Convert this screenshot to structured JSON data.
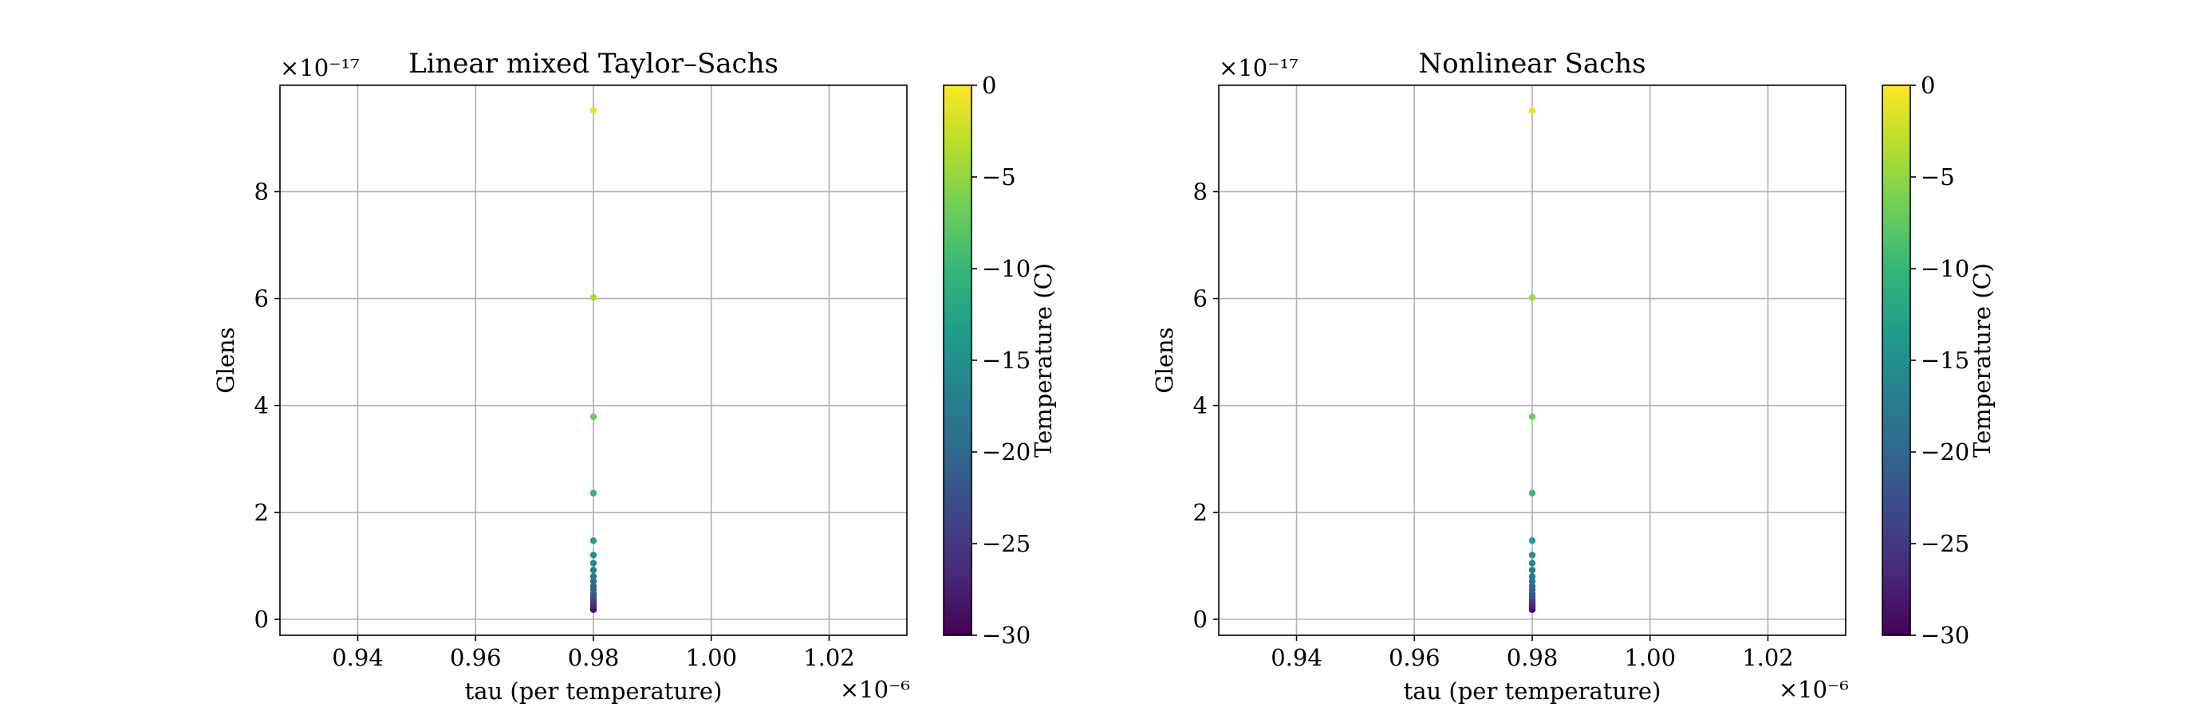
{
  "colorbar_colors": [
    "#440154",
    "#482878",
    "#3e4989",
    "#31688e",
    "#26828e",
    "#1f9e89",
    "#35b779",
    "#6ece58",
    "#b5de2b",
    "#fde725"
  ],
  "chart_data": [
    {
      "type": "scatter",
      "title": "Linear mixed Taylor–Sachs",
      "xlabel": "tau (per temperature)",
      "ylabel": "Glens",
      "x_offset_label": "×10⁻⁶",
      "y_offset_label": "×10⁻¹⁷",
      "xlim": [
        0.9268,
        1.0332
      ],
      "ylim": [
        -0.3,
        9.99
      ],
      "xticks": [
        0.94,
        0.96,
        0.98,
        1.0,
        1.02
      ],
      "xtick_labels": [
        "0.94",
        "0.96",
        "0.98",
        "1.00",
        "1.02"
      ],
      "yticks": [
        0,
        2,
        4,
        6,
        8
      ],
      "ytick_labels": [
        "0",
        "2",
        "4",
        "6",
        "8"
      ],
      "grid": true,
      "colorbar": {
        "label": "Temperature (C)",
        "range": [
          -30,
          0
        ],
        "ticks": [
          0,
          -5,
          -10,
          -15,
          -20,
          -25,
          -30
        ],
        "tick_labels": [
          "0",
          "−5",
          "−10",
          "−15",
          "−20",
          "−25",
          "−30"
        ]
      },
      "points": [
        {
          "x": 0.98,
          "y": 0.18,
          "c": -30
        },
        {
          "x": 0.98,
          "y": 0.21,
          "c": -29
        },
        {
          "x": 0.98,
          "y": 0.24,
          "c": -28
        },
        {
          "x": 0.98,
          "y": 0.27,
          "c": -27
        },
        {
          "x": 0.98,
          "y": 0.3,
          "c": -26
        },
        {
          "x": 0.98,
          "y": 0.34,
          "c": -25
        },
        {
          "x": 0.98,
          "y": 0.38,
          "c": -24
        },
        {
          "x": 0.98,
          "y": 0.43,
          "c": -23
        },
        {
          "x": 0.98,
          "y": 0.48,
          "c": -22
        },
        {
          "x": 0.98,
          "y": 0.55,
          "c": -21
        },
        {
          "x": 0.98,
          "y": 0.62,
          "c": -20
        },
        {
          "x": 0.98,
          "y": 0.71,
          "c": -19
        },
        {
          "x": 0.98,
          "y": 0.8,
          "c": -18
        },
        {
          "x": 0.98,
          "y": 0.92,
          "c": -17
        },
        {
          "x": 0.98,
          "y": 1.05,
          "c": -16
        },
        {
          "x": 0.98,
          "y": 1.2,
          "c": -15
        },
        {
          "x": 0.98,
          "y": 1.47,
          "c": -13
        },
        {
          "x": 0.98,
          "y": 2.36,
          "c": -10
        },
        {
          "x": 0.98,
          "y": 3.79,
          "c": -7
        },
        {
          "x": 0.98,
          "y": 6.02,
          "c": -4
        },
        {
          "x": 0.98,
          "y": 9.52,
          "c": -1
        }
      ]
    },
    {
      "type": "scatter",
      "title": "Nonlinear Sachs",
      "xlabel": "tau (per temperature)",
      "ylabel": "Glens",
      "x_offset_label": "×10⁻⁶",
      "y_offset_label": "×10⁻¹⁷",
      "xlim": [
        0.9268,
        1.0332
      ],
      "ylim": [
        -0.3,
        9.99
      ],
      "xticks": [
        0.94,
        0.96,
        0.98,
        1.0,
        1.02
      ],
      "xtick_labels": [
        "0.94",
        "0.96",
        "0.98",
        "1.00",
        "1.02"
      ],
      "yticks": [
        0,
        2,
        4,
        6,
        8
      ],
      "ytick_labels": [
        "0",
        "2",
        "4",
        "6",
        "8"
      ],
      "grid": true,
      "colorbar": {
        "label": "Temperature (C)",
        "range": [
          -30,
          0
        ],
        "ticks": [
          0,
          -5,
          -10,
          -15,
          -20,
          -25,
          -30
        ],
        "tick_labels": [
          "0",
          "−5",
          "−10",
          "−15",
          "−20",
          "−25",
          "−30"
        ]
      },
      "points": [
        {
          "x": 0.98,
          "y": 0.18,
          "c": -30
        },
        {
          "x": 0.98,
          "y": 0.21,
          "c": -29
        },
        {
          "x": 0.98,
          "y": 0.24,
          "c": -28
        },
        {
          "x": 0.98,
          "y": 0.27,
          "c": -27
        },
        {
          "x": 0.98,
          "y": 0.3,
          "c": -26
        },
        {
          "x": 0.98,
          "y": 0.34,
          "c": -25
        },
        {
          "x": 0.98,
          "y": 0.38,
          "c": -24
        },
        {
          "x": 0.98,
          "y": 0.43,
          "c": -23
        },
        {
          "x": 0.98,
          "y": 0.48,
          "c": -22
        },
        {
          "x": 0.98,
          "y": 0.55,
          "c": -21
        },
        {
          "x": 0.98,
          "y": 0.62,
          "c": -20
        },
        {
          "x": 0.98,
          "y": 0.71,
          "c": -19
        },
        {
          "x": 0.98,
          "y": 0.8,
          "c": -18
        },
        {
          "x": 0.98,
          "y": 0.92,
          "c": -17
        },
        {
          "x": 0.98,
          "y": 1.05,
          "c": -16
        },
        {
          "x": 0.98,
          "y": 1.2,
          "c": -15
        },
        {
          "x": 0.98,
          "y": 1.47,
          "c": -13
        },
        {
          "x": 0.98,
          "y": 2.36,
          "c": -10
        },
        {
          "x": 0.98,
          "y": 3.79,
          "c": -7
        },
        {
          "x": 0.98,
          "y": 6.02,
          "c": -4
        },
        {
          "x": 0.98,
          "y": 9.52,
          "c": -1
        }
      ]
    }
  ]
}
